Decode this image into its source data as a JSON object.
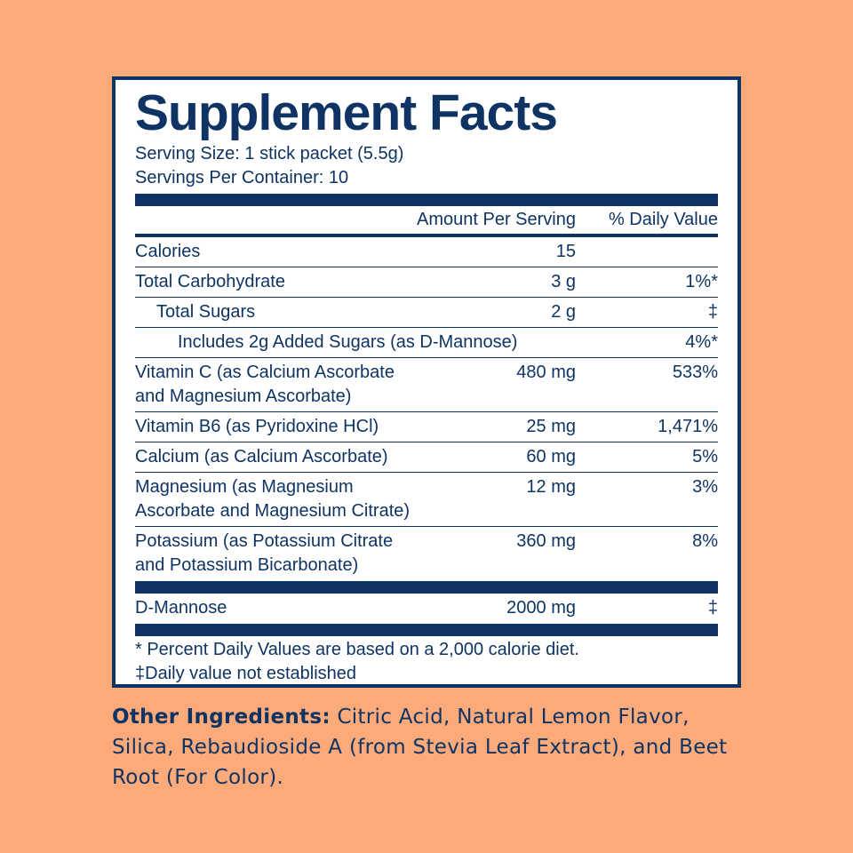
{
  "title": "Supplement Facts",
  "serving_size": "Serving Size: 1 stick packet (5.5g)",
  "servings_per_container": "Servings Per Container: 10",
  "header": [
    "Amount Per Serving",
    "% Daily Value"
  ],
  "rows": [
    {
      "name": [
        "Calories"
      ],
      "amount": "15",
      "dv": null
    },
    {
      "name": [
        "Total Carbohydrate"
      ],
      "amount": "3 g",
      "dv": "1%*"
    },
    {
      "name": [
        "Total Sugars"
      ],
      "amount": "2 g",
      "dv": "‡"
    },
    {
      "name": [
        "Includes 2g Added Sugars (as D-Mannose)"
      ],
      "amount": null,
      "dv": "4%*"
    },
    {
      "name": [
        "Vitamin C (as Calcium Ascorbate",
        "and Magnesium Ascorbate)"
      ],
      "amount": "480 mg",
      "dv": "533%"
    },
    {
      "name": [
        "Vitamin B6 (as Pyridoxine HCl)"
      ],
      "amount": "25 mg",
      "dv": "1,471%"
    },
    {
      "name": [
        "Calcium (as Calcium Ascorbate)"
      ],
      "amount": "60 mg",
      "dv": "5%"
    },
    {
      "name": [
        "Magnesium (as Magnesium",
        "Ascorbate and Magnesium Citrate)"
      ],
      "amount": "12 mg",
      "dv": "3%"
    },
    {
      "name": [
        "Potassium (as Potassium Citrate",
        "and Potassium Bicarbonate)"
      ],
      "amount": "360 mg",
      "dv": "8%"
    },
    {
      "name": [
        "D-Mannose"
      ],
      "amount": "2000 mg",
      "dv": "‡"
    }
  ],
  "footnotes": [
    "* Percent Daily Values are based on a 2,000 calorie diet.",
    "‡Daily value not established"
  ],
  "other_ingredients": {
    "label": "Other Ingredients:",
    "text": "Citric Acid, Natural Lemon Flavor, Silica, Rebaudioside A (from Stevia Leaf Extract), and Beet Root (For Color)."
  }
}
